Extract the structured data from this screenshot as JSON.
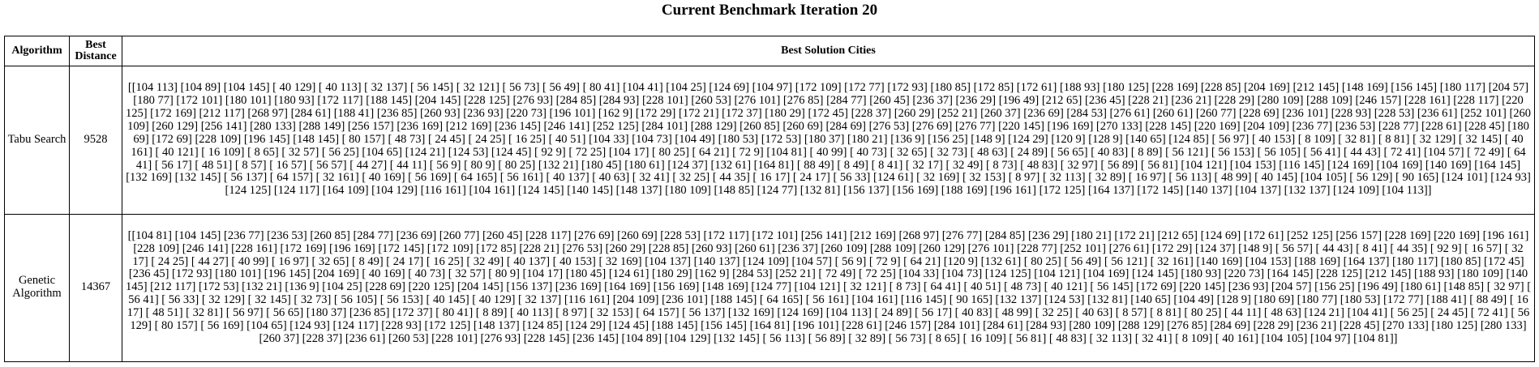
{
  "title": "Current Benchmark Iteration 20",
  "table": {
    "headers": [
      "Algorithm",
      "Best Distance",
      "Best Solution Cities"
    ],
    "rows": [
      {
        "algorithm": "Tabu Search",
        "distance": "9528",
        "cities": "[[104 113] [104 89] [104 145] [ 40 129] [ 40 113] [ 32 137] [ 56 145] [ 32 121] [ 56 73] [ 56 49] [ 80 41] [104 41] [104 25] [124 69] [104 97] [172 109] [172 77] [172 93] [180 85] [172 85] [172 61] [188 93] [180 125] [228 169] [228 85] [204 169] [212 145] [148 169] [156 145] [180 117] [204 57] [180 77] [172 101] [180 101] [180 93] [172 117] [188 145] [204 145] [228 125] [276 93] [284 85] [284 93] [228 101] [260 53] [276 101] [276 85] [284 77] [260 45] [236 37] [236 29] [196 49] [212 65] [236 45] [228 21] [236 21] [228 29] [280 109] [288 109] [246 157] [228 161] [228 117] [220 125] [172 169] [212 117] [268 97] [284 61] [188 41] [236 85] [260 93] [236 93] [220 73] [196 101] [162 9] [172 29] [172 21] [172 37] [180 29] [172 45] [228 37] [260 29] [252 21] [260 37] [236 69] [284 53] [276 61] [260 61] [260 77] [228 69] [236 101] [228 93] [228 53] [236 61] [252 101] [260 109] [260 129] [256 141] [280 133] [288 149] [256 157] [236 169] [212 169] [236 145] [246 141] [252 125] [284 101] [288 129] [260 85] [260 69] [284 69] [276 53] [276 69] [276 77] [220 145] [196 169] [270 133] [228 145] [220 169] [204 109] [236 77] [236 53] [228 77] [228 61] [228 45] [180 69] [172 69] [228 109] [196 145] [148 145] [ 80 157] [ 48 73] [ 24 45] [ 24 25] [ 16 25] [ 40 51] [104 33] [104 73] [104 49] [180 53] [172 53] [180 37] [180 21] [136 9] [156 25] [148 9] [124 29] [120 9] [128 9] [140 65] [124 85] [ 56 97] [ 40 153] [ 8 109] [ 32 81] [ 8 81] [ 32 129] [ 32 145] [ 40 161] [ 40 121] [ 16 109] [ 8 65] [ 32 57] [ 56 25] [104 65] [124 21] [124 53] [124 45] [ 92 9] [ 72 25] [104 17] [ 80 25] [ 64 21] [ 72 9] [104 81] [ 40 99] [ 40 73] [ 32 65] [ 32 73] [ 48 63] [ 24 89] [ 56 65] [ 40 83] [ 8 89] [ 56 121] [ 56 153] [ 56 105] [ 56 41] [ 44 43] [ 72 41] [104 57] [ 72 49] [ 64 41] [ 56 17] [ 48 51] [ 8 57] [ 16 57] [ 56 57] [ 44 27] [ 44 11] [ 56 9] [ 80 9] [ 80 25] [132 21] [180 45] [180 61] [124 37] [132 61] [164 81] [ 88 49] [ 8 49] [ 8 41] [ 32 17] [ 32 49] [ 8 73] [ 48 83] [ 32 97] [ 56 89] [ 56 81] [104 121] [104 153] [116 145] [124 169] [104 169] [140 169] [164 145] [132 169] [132 145] [ 56 137] [ 64 157] [ 32 161] [ 40 169] [ 56 169] [ 64 165] [ 56 161] [ 40 137] [ 40 63] [ 32 41] [ 32 25] [ 44 35] [ 16 17] [ 24 17] [ 56 33] [124 61] [ 32 169] [ 32 153] [ 8 97] [ 32 113] [ 32 89] [ 16 97] [ 56 113] [ 48 99] [ 40 145] [104 105] [ 56 129] [ 90 165] [124 101] [124 93] [124 125] [124 117] [164 109] [104 129] [116 161] [104 161] [124 145] [140 145] [148 137] [180 109] [148 85] [124 77] [132 81] [156 137] [156 169] [188 169] [196 161] [172 125] [164 137] [172 145] [140 137] [104 137] [132 137] [124 109] [104 113]]"
      },
      {
        "algorithm": "Genetic Algorithm",
        "distance": "14367",
        "cities": "[[104 81] [104 145] [236 77] [236 53] [260 85] [284 77] [236 69] [260 77] [260 45] [228 117] [276 69] [260 69] [228 53] [172 117] [172 101] [256 141] [212 169] [268 97] [276 77] [284 85] [236 29] [180 21] [172 21] [212 65] [124 69] [172 61] [252 125] [256 157] [228 169] [220 169] [196 161] [228 109] [246 141] [228 161] [172 169] [196 169] [172 145] [172 109] [172 85] [228 21] [276 53] [260 29] [228 85] [260 93] [260 61] [236 37] [260 109] [288 109] [260 129] [276 101] [228 77] [252 101] [276 61] [172 29] [124 37] [148 9] [ 56 57] [ 44 43] [ 8 41] [ 44 35] [ 92 9] [ 16 57] [ 32 17] [ 24 25] [ 44 27] [ 40 99] [ 16 97] [ 32 65] [ 8 49] [ 24 17] [ 16 25] [ 32 49] [ 40 137] [ 40 153] [ 32 169] [104 137] [140 137] [124 109] [104 57] [ 56 9] [ 72 9] [ 64 21] [120 9] [132 61] [ 80 25] [ 56 49] [ 56 121] [ 32 161] [140 169] [104 153] [188 169] [164 137] [180 117] [180 85] [172 45] [236 45] [172 93] [180 101] [196 145] [204 169] [ 40 169] [ 40 73] [ 32 57] [ 80 9] [104 17] [180 45] [124 61] [180 29] [162 9] [284 53] [252 21] [ 72 49] [ 72 25] [104 33] [104 73] [124 125] [104 121] [104 169] [124 145] [180 93] [220 73] [164 145] [228 125] [212 145] [188 93] [180 109] [140 145] [212 117] [172 53] [132 21] [136 9] [104 25] [228 69] [220 125] [204 145] [156 137] [236 169] [164 169] [156 169] [148 169] [124 77] [104 121] [ 32 121] [ 8 73] [ 64 41] [ 40 51] [ 48 73] [ 40 121] [ 56 145] [172 69] [220 145] [236 93] [204 57] [156 25] [196 49] [180 61] [148 85] [ 32 97] [ 56 41] [ 56 33] [ 32 129] [ 32 145] [ 32 73] [ 56 105] [ 56 153] [ 40 145] [ 40 129] [ 32 137] [116 161] [204 109] [236 101] [188 145] [ 64 165] [ 56 161] [104 161] [116 145] [ 90 165] [132 137] [124 53] [132 81] [140 65] [104 49] [128 9] [180 69] [180 77] [180 53] [172 77] [188 41] [ 88 49] [ 16 17] [ 48 51] [ 32 81] [ 56 97] [ 56 65] [180 37] [236 85] [172 37] [ 80 41] [ 8 89] [ 40 113] [ 8 97] [ 32 153] [ 64 157] [ 56 137] [132 169] [124 169] [104 113] [ 24 89] [ 56 17] [ 40 83] [ 48 99] [ 32 25] [ 40 63] [ 8 57] [ 8 81] [ 80 25] [ 44 11] [ 48 63] [124 21] [104 41] [ 56 25] [ 24 45] [ 72 41] [ 56 129] [ 80 157] [ 56 169] [104 65] [124 93] [124 117] [228 93] [172 125] [148 137] [124 85] [124 29] [124 45] [188 145] [156 145] [164 81] [196 101] [228 61] [246 157] [284 101] [284 61] [284 93] [280 109] [288 129] [276 85] [284 69] [228 29] [236 21] [228 45] [270 133] [180 125] [280 133] [260 37] [228 37] [236 61] [260 53] [228 101] [276 93] [228 145] [236 145] [104 89] [104 129] [132 145] [ 56 113] [ 56 89] [ 32 89] [ 56 73] [ 8 65] [ 16 109] [ 56 81] [ 48 83] [ 32 113] [ 32 41] [ 8 109] [ 40 161] [104 105] [104 97] [104 81]]"
      }
    ]
  }
}
